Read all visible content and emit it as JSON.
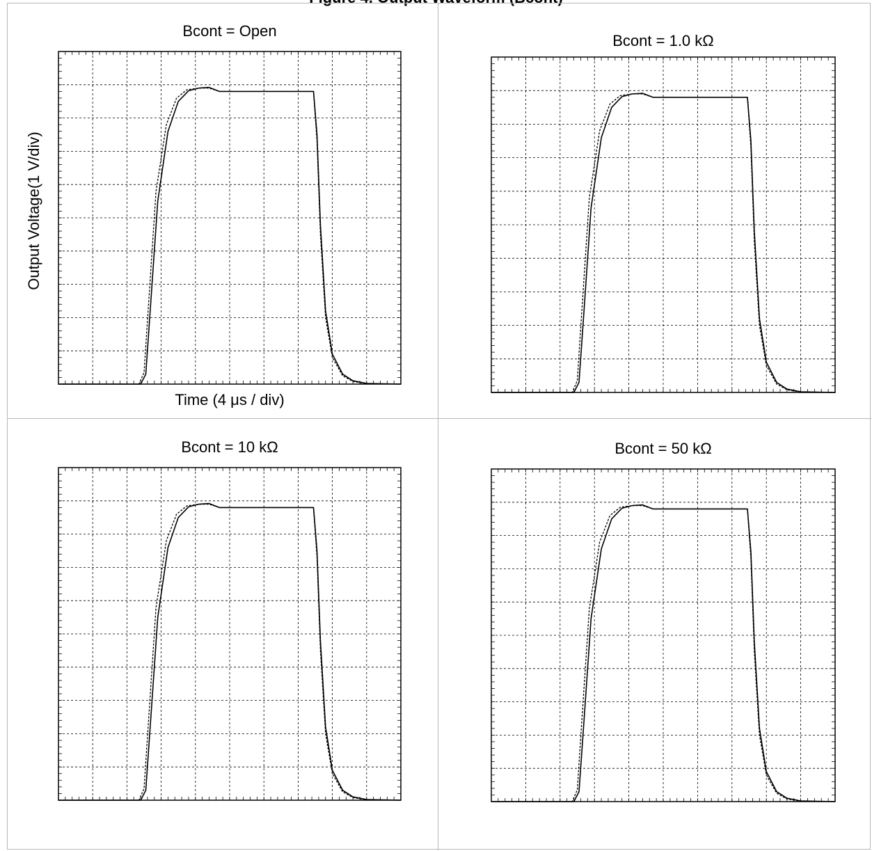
{
  "page": {
    "title": "Figure 4. Output Waveform (Bcont)"
  },
  "chart_data": [
    {
      "type": "line",
      "title": "Bcont = Open",
      "xlabel": "Time (4 μs / div)",
      "ylabel": "Output Voltage(1 V/div)",
      "xlim": [
        0,
        10
      ],
      "ylim": [
        0,
        10
      ],
      "grid": true,
      "series": [
        {
          "style": "solid",
          "x": [
            0,
            2.4,
            2.55,
            2.7,
            2.9,
            3.2,
            3.5,
            3.8,
            4.1,
            4.4,
            4.7,
            5.0,
            6.0,
            7.0,
            7.45,
            7.55,
            7.65,
            7.8,
            8.0,
            8.3,
            8.6,
            9.0,
            10
          ],
          "y": [
            0,
            0,
            0.3,
            2.5,
            5.5,
            7.6,
            8.5,
            8.82,
            8.9,
            8.92,
            8.8,
            8.8,
            8.8,
            8.8,
            8.8,
            7.5,
            4.8,
            2.2,
            0.9,
            0.3,
            0.1,
            0.02,
            0
          ]
        },
        {
          "style": "dashed",
          "x": [
            0,
            2.35,
            2.5,
            2.65,
            2.85,
            3.15,
            3.45,
            3.75,
            4.1,
            4.4,
            4.7,
            5.0,
            6.0,
            7.0,
            7.45,
            7.55,
            7.65,
            7.8,
            8.0,
            8.3,
            8.6,
            9.0,
            10
          ],
          "y": [
            0,
            0,
            0.35,
            2.7,
            5.8,
            7.8,
            8.6,
            8.85,
            8.9,
            8.9,
            8.8,
            8.8,
            8.8,
            8.8,
            8.8,
            7.3,
            4.5,
            2.0,
            0.8,
            0.25,
            0.08,
            0.01,
            0
          ]
        }
      ]
    },
    {
      "type": "line",
      "title": "Bcont = 1.0 kΩ",
      "xlim": [
        0,
        10
      ],
      "ylim": [
        0,
        10
      ],
      "grid": true,
      "series": [
        {
          "style": "solid",
          "x": [
            0,
            2.4,
            2.55,
            2.7,
            2.9,
            3.2,
            3.5,
            3.8,
            4.1,
            4.4,
            4.7,
            5.0,
            6.0,
            7.0,
            7.45,
            7.55,
            7.65,
            7.8,
            8.0,
            8.3,
            8.6,
            9.0,
            10
          ],
          "y": [
            0,
            0,
            0.3,
            2.5,
            5.5,
            7.6,
            8.5,
            8.82,
            8.9,
            8.92,
            8.8,
            8.8,
            8.8,
            8.8,
            8.8,
            7.5,
            4.8,
            2.2,
            0.9,
            0.3,
            0.1,
            0.02,
            0
          ]
        },
        {
          "style": "dashed",
          "x": [
            0,
            2.35,
            2.5,
            2.65,
            2.85,
            3.15,
            3.45,
            3.75,
            4.1,
            4.4,
            4.7,
            5.0,
            6.0,
            7.0,
            7.45,
            7.55,
            7.65,
            7.8,
            8.0,
            8.3,
            8.6,
            9.0,
            10
          ],
          "y": [
            0,
            0,
            0.35,
            2.7,
            5.8,
            7.8,
            8.6,
            8.85,
            8.9,
            8.9,
            8.8,
            8.8,
            8.8,
            8.8,
            8.8,
            7.3,
            4.5,
            2.0,
            0.8,
            0.25,
            0.08,
            0.01,
            0
          ]
        }
      ]
    },
    {
      "type": "line",
      "title": "Bcont = 10 kΩ",
      "xlim": [
        0,
        10
      ],
      "ylim": [
        0,
        10
      ],
      "grid": true,
      "series": [
        {
          "style": "solid",
          "x": [
            0,
            2.4,
            2.55,
            2.7,
            2.9,
            3.2,
            3.5,
            3.8,
            4.1,
            4.4,
            4.7,
            5.0,
            6.0,
            7.0,
            7.45,
            7.55,
            7.65,
            7.8,
            8.0,
            8.3,
            8.6,
            9.0,
            10
          ],
          "y": [
            0,
            0,
            0.3,
            2.5,
            5.5,
            7.6,
            8.5,
            8.82,
            8.9,
            8.92,
            8.8,
            8.8,
            8.8,
            8.8,
            8.8,
            7.5,
            4.8,
            2.2,
            0.9,
            0.3,
            0.1,
            0.02,
            0
          ]
        },
        {
          "style": "dashed",
          "x": [
            0,
            2.35,
            2.5,
            2.65,
            2.85,
            3.15,
            3.45,
            3.75,
            4.1,
            4.4,
            4.7,
            5.0,
            6.0,
            7.0,
            7.45,
            7.55,
            7.65,
            7.8,
            8.0,
            8.3,
            8.6,
            9.0,
            10
          ],
          "y": [
            0,
            0,
            0.35,
            2.7,
            5.8,
            7.8,
            8.6,
            8.85,
            8.9,
            8.9,
            8.8,
            8.8,
            8.8,
            8.8,
            8.8,
            7.3,
            4.5,
            2.0,
            0.8,
            0.25,
            0.08,
            0.01,
            0
          ]
        }
      ]
    },
    {
      "type": "line",
      "title": "Bcont = 50 kΩ",
      "xlim": [
        0,
        10
      ],
      "ylim": [
        0,
        10
      ],
      "grid": true,
      "series": [
        {
          "style": "solid",
          "x": [
            0,
            2.4,
            2.55,
            2.7,
            2.9,
            3.2,
            3.5,
            3.8,
            4.1,
            4.4,
            4.7,
            5.0,
            6.0,
            7.0,
            7.45,
            7.55,
            7.65,
            7.8,
            8.0,
            8.3,
            8.6,
            9.0,
            10
          ],
          "y": [
            0,
            0,
            0.3,
            2.5,
            5.5,
            7.6,
            8.5,
            8.82,
            8.9,
            8.92,
            8.8,
            8.8,
            8.8,
            8.8,
            8.8,
            7.5,
            4.8,
            2.2,
            0.9,
            0.3,
            0.1,
            0.02,
            0
          ]
        },
        {
          "style": "dashed",
          "x": [
            0,
            2.35,
            2.5,
            2.65,
            2.85,
            3.15,
            3.45,
            3.75,
            4.1,
            4.4,
            4.7,
            5.0,
            6.0,
            7.0,
            7.45,
            7.55,
            7.65,
            7.8,
            8.0,
            8.3,
            8.6,
            9.0,
            10
          ],
          "y": [
            0,
            0,
            0.35,
            2.7,
            5.8,
            7.8,
            8.6,
            8.85,
            8.9,
            8.9,
            8.8,
            8.8,
            8.8,
            8.8,
            8.8,
            7.3,
            4.5,
            2.0,
            0.8,
            0.25,
            0.08,
            0.01,
            0
          ]
        }
      ]
    }
  ]
}
